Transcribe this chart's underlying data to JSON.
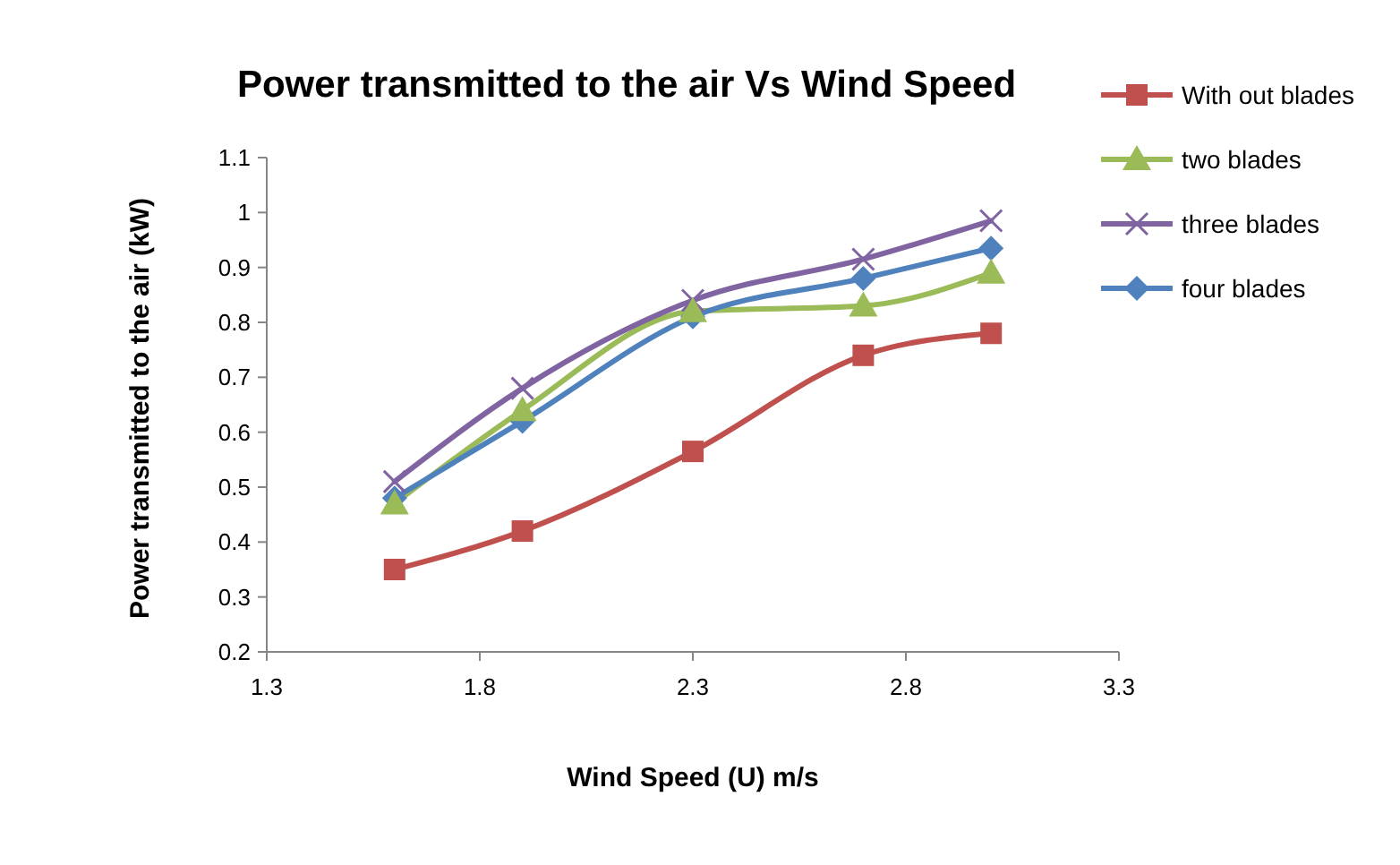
{
  "chart_data": {
    "type": "line",
    "title": "Power transmitted to the air Vs Wind Speed",
    "xlabel": "Wind Speed (U) m/s",
    "ylabel": "Power transmitted to the air (kW)",
    "x": [
      1.6,
      1.9,
      2.3,
      2.7,
      3.0
    ],
    "series": [
      {
        "name": "With out blades",
        "color": "#c0504d",
        "marker": "square",
        "values": [
          0.35,
          0.42,
          0.565,
          0.74,
          0.78
        ]
      },
      {
        "name": "two blades",
        "color": "#9bbb59",
        "marker": "triangle",
        "values": [
          0.47,
          0.64,
          0.82,
          0.83,
          0.89
        ]
      },
      {
        "name": "three blades",
        "color": "#8064a2",
        "marker": "cross",
        "values": [
          0.51,
          0.68,
          0.84,
          0.915,
          0.985
        ]
      },
      {
        "name": "four blades",
        "color": "#4f81bd",
        "marker": "diamond",
        "values": [
          0.48,
          0.62,
          0.81,
          0.88,
          0.935
        ]
      }
    ],
    "xlim": [
      1.3,
      3.3
    ],
    "xticks": [
      1.3,
      1.8,
      2.3,
      2.8,
      3.3
    ],
    "ylim": [
      0.2,
      1.1
    ],
    "yticks": [
      0.2,
      0.3,
      0.4,
      0.5,
      0.6,
      0.7,
      0.8,
      0.9,
      1,
      1.1
    ],
    "grid": false,
    "legend": "top right"
  }
}
